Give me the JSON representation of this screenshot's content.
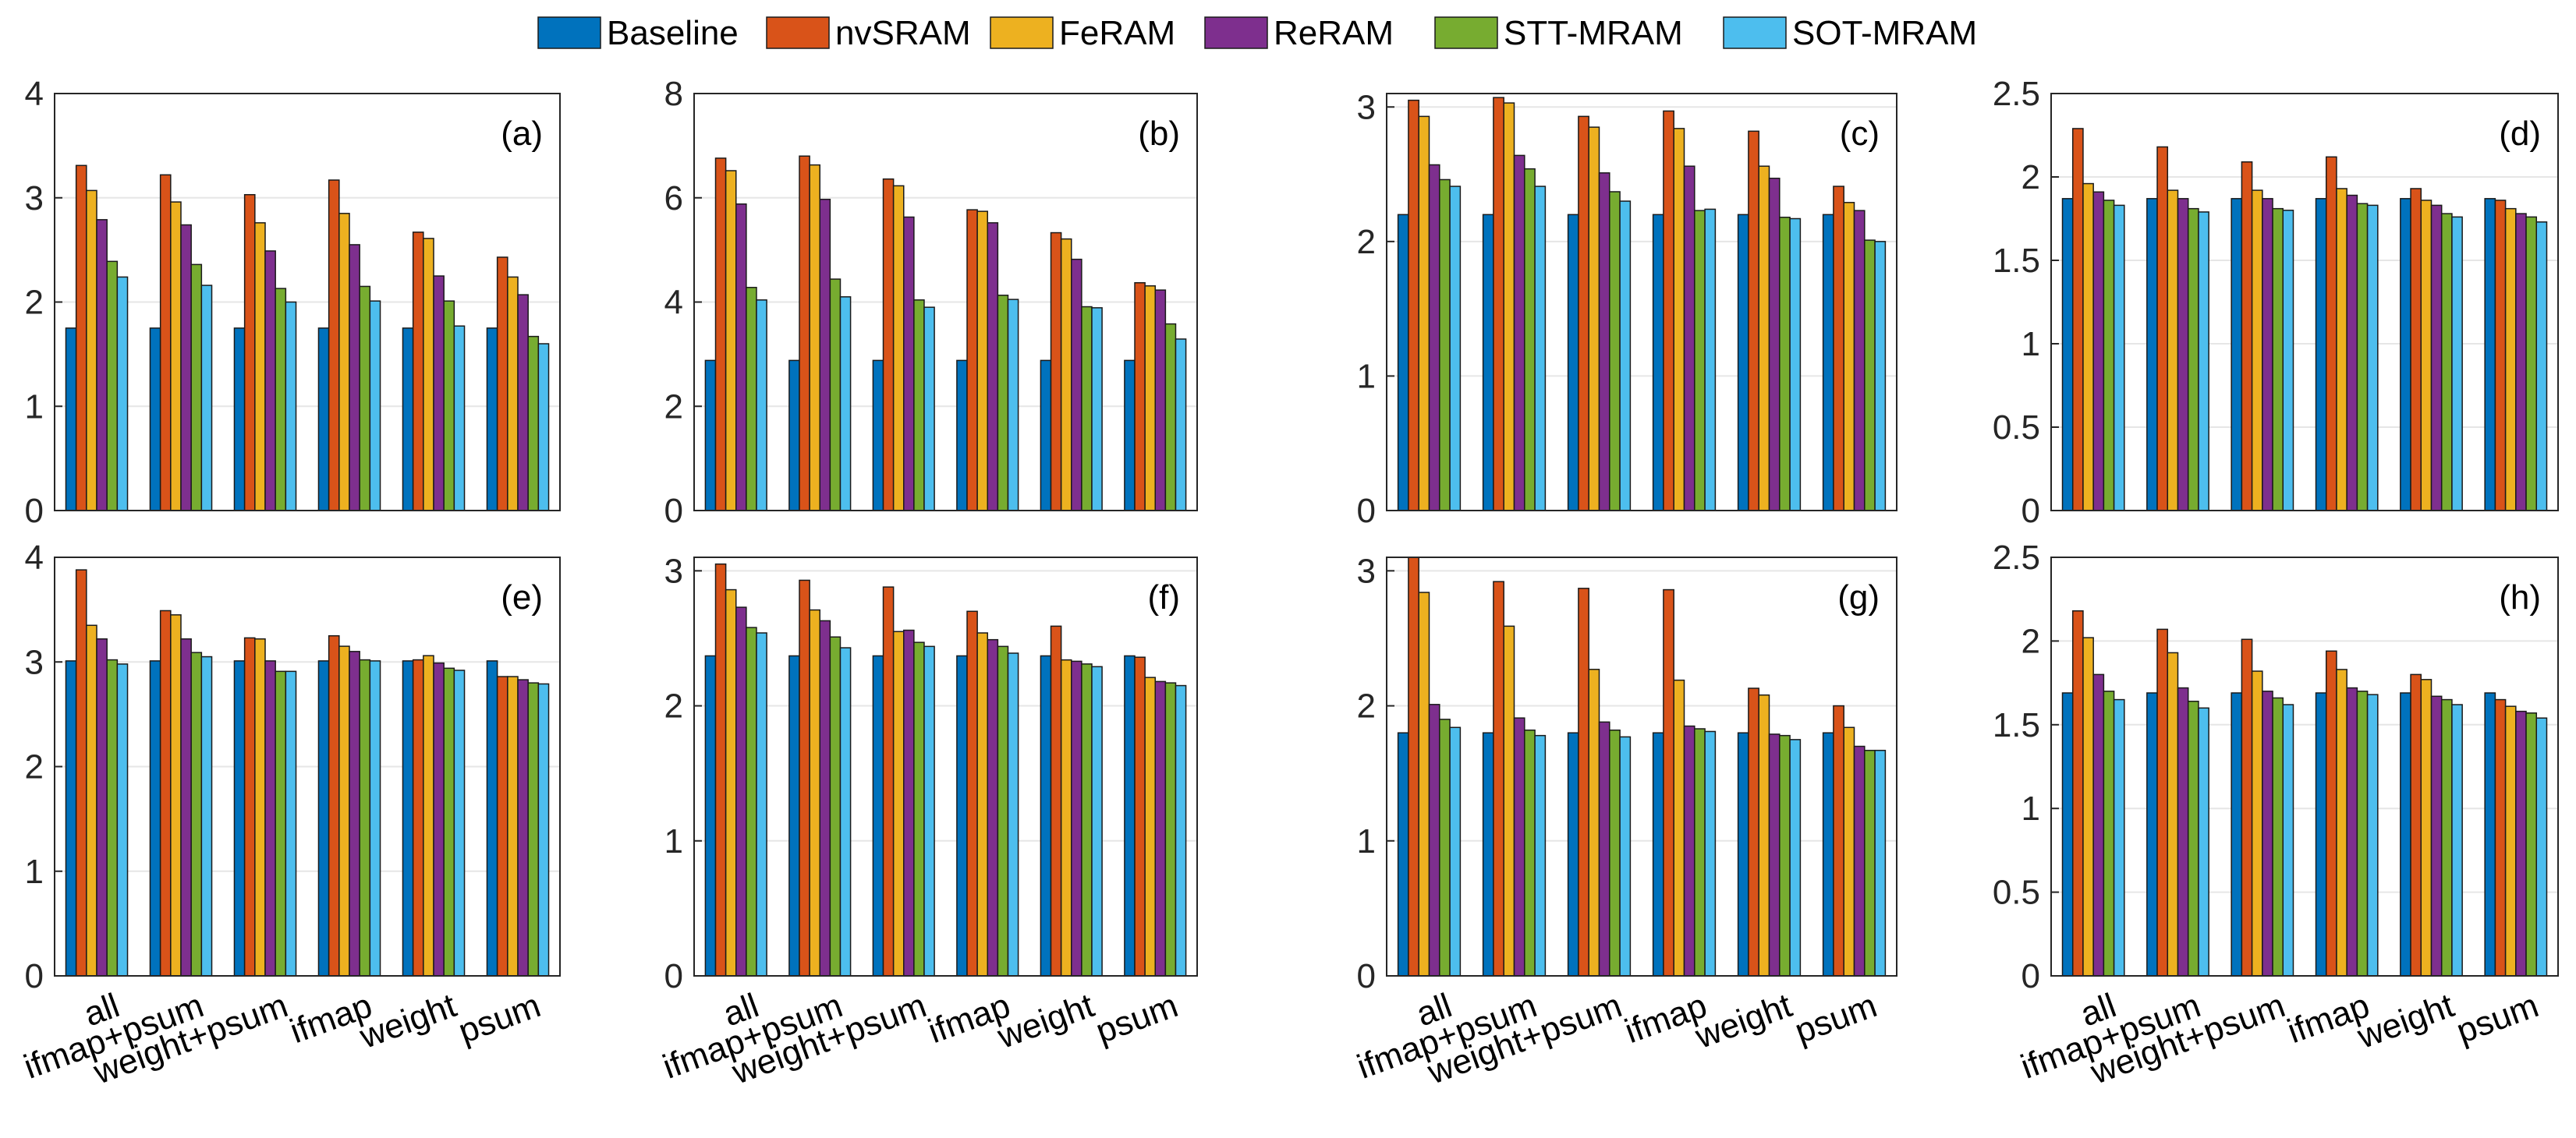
{
  "chart_data": {
    "type": "bar",
    "legend_placement": "top-center",
    "categories": [
      "all",
      "ifmap+psum",
      "weight+psum",
      "ifmap",
      "weight",
      "psum"
    ],
    "series_names": [
      "Baseline",
      "nvSRAM",
      "FeRAM",
      "ReRAM",
      "STT-MRAM",
      "SOT-MRAM"
    ],
    "colors": [
      "#0072BD",
      "#D95319",
      "#EDB120",
      "#7E2F8E",
      "#77AC30",
      "#4DBEEE"
    ],
    "panels": [
      {
        "label": "(a)",
        "ylim": [
          0,
          4
        ],
        "yticks": [
          "0",
          "1",
          "2",
          "3",
          "4"
        ],
        "grid": true,
        "xticklabels": false,
        "series": [
          {
            "name": "Baseline",
            "values": [
              1.75,
              1.75,
              1.75,
              1.75,
              1.75,
              1.75
            ]
          },
          {
            "name": "nvSRAM",
            "values": [
              3.31,
              3.22,
              3.03,
              3.17,
              2.67,
              2.43
            ]
          },
          {
            "name": "FeRAM",
            "values": [
              3.07,
              2.96,
              2.76,
              2.85,
              2.61,
              2.24
            ]
          },
          {
            "name": "ReRAM",
            "values": [
              2.79,
              2.74,
              2.49,
              2.55,
              2.25,
              2.07
            ]
          },
          {
            "name": "STT-MRAM",
            "values": [
              2.39,
              2.36,
              2.13,
              2.15,
              2.01,
              1.67
            ]
          },
          {
            "name": "SOT-MRAM",
            "values": [
              2.24,
              2.16,
              2.0,
              2.01,
              1.77,
              1.6
            ]
          }
        ]
      },
      {
        "label": "(b)",
        "ylim": [
          0,
          8
        ],
        "yticks": [
          "0",
          "2",
          "4",
          "6",
          "8"
        ],
        "grid": true,
        "xticklabels": false,
        "series": [
          {
            "name": "Baseline",
            "values": [
              2.88,
              2.88,
              2.88,
              2.88,
              2.88,
              2.88
            ]
          },
          {
            "name": "nvSRAM",
            "values": [
              6.76,
              6.8,
              6.36,
              5.77,
              5.33,
              4.37
            ]
          },
          {
            "name": "FeRAM",
            "values": [
              6.52,
              6.63,
              6.23,
              5.74,
              5.21,
              4.31
            ]
          },
          {
            "name": "ReRAM",
            "values": [
              5.88,
              5.97,
              5.63,
              5.52,
              4.82,
              4.23
            ]
          },
          {
            "name": "STT-MRAM",
            "values": [
              4.28,
              4.44,
              4.04,
              4.13,
              3.91,
              3.58
            ]
          },
          {
            "name": "SOT-MRAM",
            "values": [
              4.04,
              4.1,
              3.9,
              4.05,
              3.89,
              3.29
            ]
          }
        ]
      },
      {
        "label": "(c)",
        "ylim": [
          0,
          3.1
        ],
        "yticks": [
          "0",
          "1",
          "2",
          "3"
        ],
        "grid": true,
        "xticklabels": false,
        "series": [
          {
            "name": "Baseline",
            "values": [
              2.2,
              2.2,
              2.2,
              2.2,
              2.2,
              2.2
            ]
          },
          {
            "name": "nvSRAM",
            "values": [
              3.05,
              3.07,
              2.93,
              2.97,
              2.82,
              2.41
            ]
          },
          {
            "name": "FeRAM",
            "values": [
              2.93,
              3.03,
              2.85,
              2.84,
              2.56,
              2.29
            ]
          },
          {
            "name": "ReRAM",
            "values": [
              2.57,
              2.64,
              2.51,
              2.56,
              2.47,
              2.23
            ]
          },
          {
            "name": "STT-MRAM",
            "values": [
              2.46,
              2.54,
              2.37,
              2.23,
              2.18,
              2.01
            ]
          },
          {
            "name": "SOT-MRAM",
            "values": [
              2.41,
              2.41,
              2.3,
              2.24,
              2.17,
              2.0
            ]
          }
        ]
      },
      {
        "label": "(d)",
        "ylim": [
          0,
          2.5
        ],
        "yticks": [
          "0",
          "0.5",
          "1",
          "1.5",
          "2",
          "2.5"
        ],
        "grid": true,
        "xticklabels": false,
        "series": [
          {
            "name": "Baseline",
            "values": [
              1.87,
              1.87,
              1.87,
              1.87,
              1.87,
              1.87
            ]
          },
          {
            "name": "nvSRAM",
            "values": [
              2.29,
              2.18,
              2.09,
              2.12,
              1.93,
              1.86
            ]
          },
          {
            "name": "FeRAM",
            "values": [
              1.96,
              1.92,
              1.92,
              1.93,
              1.86,
              1.81
            ]
          },
          {
            "name": "ReRAM",
            "values": [
              1.91,
              1.87,
              1.87,
              1.89,
              1.83,
              1.78
            ]
          },
          {
            "name": "STT-MRAM",
            "values": [
              1.86,
              1.81,
              1.81,
              1.84,
              1.78,
              1.76
            ]
          },
          {
            "name": "SOT-MRAM",
            "values": [
              1.83,
              1.79,
              1.8,
              1.83,
              1.76,
              1.73
            ]
          }
        ]
      },
      {
        "label": "(e)",
        "ylim": [
          0,
          4
        ],
        "yticks": [
          "0",
          "1",
          "2",
          "3",
          "4"
        ],
        "grid": true,
        "xticklabels": true,
        "series": [
          {
            "name": "Baseline",
            "values": [
              3.01,
              3.01,
              3.01,
              3.01,
              3.01,
              3.01
            ]
          },
          {
            "name": "nvSRAM",
            "values": [
              3.88,
              3.49,
              3.23,
              3.25,
              3.02,
              2.86
            ]
          },
          {
            "name": "FeRAM",
            "values": [
              3.35,
              3.45,
              3.22,
              3.15,
              3.06,
              2.86
            ]
          },
          {
            "name": "ReRAM",
            "values": [
              3.22,
              3.22,
              3.01,
              3.1,
              2.99,
              2.83
            ]
          },
          {
            "name": "STT-MRAM",
            "values": [
              3.02,
              3.09,
              2.91,
              3.02,
              2.94,
              2.8
            ]
          },
          {
            "name": "SOT-MRAM",
            "values": [
              2.98,
              3.05,
              2.91,
              3.01,
              2.92,
              2.79
            ]
          }
        ]
      },
      {
        "label": "(f)",
        "ylim": [
          0,
          3.1
        ],
        "yticks": [
          "0",
          "1",
          "2",
          "3"
        ],
        "grid": true,
        "xticklabels": true,
        "series": [
          {
            "name": "Baseline",
            "values": [
              2.37,
              2.37,
              2.37,
              2.37,
              2.37,
              2.37
            ]
          },
          {
            "name": "nvSRAM",
            "values": [
              3.05,
              2.93,
              2.88,
              2.7,
              2.59,
              2.36
            ]
          },
          {
            "name": "FeRAM",
            "values": [
              2.86,
              2.71,
              2.55,
              2.54,
              2.34,
              2.21
            ]
          },
          {
            "name": "ReRAM",
            "values": [
              2.73,
              2.63,
              2.56,
              2.49,
              2.33,
              2.18
            ]
          },
          {
            "name": "STT-MRAM",
            "values": [
              2.58,
              2.51,
              2.47,
              2.44,
              2.31,
              2.17
            ]
          },
          {
            "name": "SOT-MRAM",
            "values": [
              2.54,
              2.43,
              2.44,
              2.39,
              2.29,
              2.15
            ]
          }
        ]
      },
      {
        "label": "(g)",
        "ylim": [
          0,
          3.1
        ],
        "yticks": [
          "0",
          "1",
          "2",
          "3"
        ],
        "grid": true,
        "xticklabels": true,
        "series": [
          {
            "name": "Baseline",
            "values": [
              1.8,
              1.8,
              1.8,
              1.8,
              1.8,
              1.8
            ]
          },
          {
            "name": "nvSRAM",
            "values": [
              3.1,
              2.92,
              2.87,
              2.86,
              2.13,
              2.0
            ]
          },
          {
            "name": "FeRAM",
            "values": [
              2.84,
              2.59,
              2.27,
              2.19,
              2.08,
              1.84
            ]
          },
          {
            "name": "ReRAM",
            "values": [
              2.01,
              1.91,
              1.88,
              1.85,
              1.79,
              1.7
            ]
          },
          {
            "name": "STT-MRAM",
            "values": [
              1.9,
              1.82,
              1.82,
              1.83,
              1.78,
              1.67
            ]
          },
          {
            "name": "SOT-MRAM",
            "values": [
              1.84,
              1.78,
              1.77,
              1.81,
              1.75,
              1.67
            ]
          }
        ]
      },
      {
        "label": "(h)",
        "ylim": [
          0,
          2.5
        ],
        "yticks": [
          "0",
          "0.5",
          "1",
          "1.5",
          "2",
          "2.5"
        ],
        "grid": true,
        "xticklabels": true,
        "series": [
          {
            "name": "Baseline",
            "values": [
              1.69,
              1.69,
              1.69,
              1.69,
              1.69,
              1.69
            ]
          },
          {
            "name": "nvSRAM",
            "values": [
              2.18,
              2.07,
              2.01,
              1.94,
              1.8,
              1.65
            ]
          },
          {
            "name": "FeRAM",
            "values": [
              2.02,
              1.93,
              1.82,
              1.83,
              1.77,
              1.61
            ]
          },
          {
            "name": "ReRAM",
            "values": [
              1.8,
              1.72,
              1.7,
              1.72,
              1.67,
              1.58
            ]
          },
          {
            "name": "STT-MRAM",
            "values": [
              1.7,
              1.64,
              1.66,
              1.7,
              1.65,
              1.57
            ]
          },
          {
            "name": "SOT-MRAM",
            "values": [
              1.65,
              1.6,
              1.62,
              1.68,
              1.62,
              1.54
            ]
          }
        ]
      }
    ]
  }
}
